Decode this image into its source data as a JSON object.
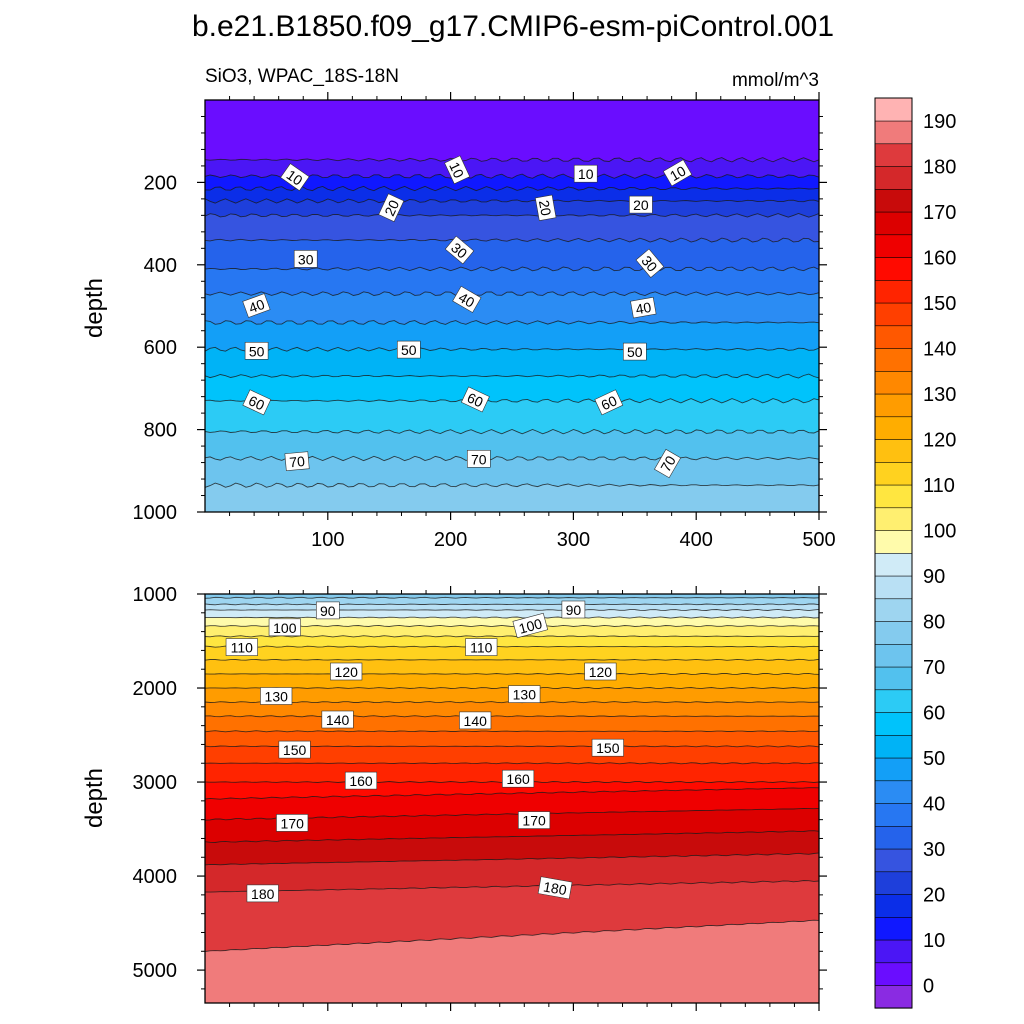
{
  "title": "b.e21.B1850.f09_g17.CMIP6-esm-piControl.001",
  "chart_data": [
    {
      "type": "contour",
      "panel": "upper",
      "subtitle_left": "SiO3, WPAC_18S-18N",
      "subtitle_right": "mmol/m^3",
      "ylabel": "depth",
      "xlabel": "",
      "xlim": [
        0,
        500
      ],
      "ylim": [
        1000,
        0
      ],
      "y_reversed": true,
      "x_ticks": [
        100,
        200,
        300,
        400,
        500
      ],
      "y_ticks": [
        200,
        400,
        600,
        800,
        1000
      ],
      "contour_depths": [
        {
          "value": 5,
          "depth": 145
        },
        {
          "value": 10,
          "depth": 185
        },
        {
          "value": 15,
          "depth": 215
        },
        {
          "value": 20,
          "depth": 245
        },
        {
          "value": 25,
          "depth": 280
        },
        {
          "value": 30,
          "depth": 340
        },
        {
          "value": 35,
          "depth": 410
        },
        {
          "value": 40,
          "depth": 470
        },
        {
          "value": 45,
          "depth": 540
        },
        {
          "value": 50,
          "depth": 605
        },
        {
          "value": 55,
          "depth": 670
        },
        {
          "value": 60,
          "depth": 730
        },
        {
          "value": 65,
          "depth": 805
        },
        {
          "value": 70,
          "depth": 870
        },
        {
          "value": 75,
          "depth": 935
        }
      ],
      "line_labels": [
        {
          "text": "10",
          "x": 73,
          "y": 188,
          "rot": 35
        },
        {
          "text": "10",
          "x": 205,
          "y": 170,
          "rot": 65
        },
        {
          "text": "10",
          "x": 310,
          "y": 180,
          "rot": 0
        },
        {
          "text": "10",
          "x": 385,
          "y": 178,
          "rot": -30
        },
        {
          "text": "20",
          "x": 152,
          "y": 262,
          "rot": -65
        },
        {
          "text": "20",
          "x": 277,
          "y": 262,
          "rot": 80
        },
        {
          "text": "20",
          "x": 355,
          "y": 255,
          "rot": 0
        },
        {
          "text": "30",
          "x": 82,
          "y": 387,
          "rot": 0
        },
        {
          "text": "30",
          "x": 207,
          "y": 365,
          "rot": 40
        },
        {
          "text": "30",
          "x": 362,
          "y": 397,
          "rot": 50
        },
        {
          "text": "40",
          "x": 42,
          "y": 500,
          "rot": -20
        },
        {
          "text": "40",
          "x": 213,
          "y": 485,
          "rot": 30
        },
        {
          "text": "40",
          "x": 357,
          "y": 505,
          "rot": -10
        },
        {
          "text": "50",
          "x": 42,
          "y": 610,
          "rot": 0
        },
        {
          "text": "50",
          "x": 166,
          "y": 607,
          "rot": 0
        },
        {
          "text": "50",
          "x": 350,
          "y": 612,
          "rot": 0
        },
        {
          "text": "60",
          "x": 42,
          "y": 735,
          "rot": 25
        },
        {
          "text": "60",
          "x": 220,
          "y": 728,
          "rot": 25
        },
        {
          "text": "60",
          "x": 329,
          "y": 735,
          "rot": -25
        },
        {
          "text": "70",
          "x": 75,
          "y": 878,
          "rot": -5
        },
        {
          "text": "70",
          "x": 223,
          "y": 872,
          "rot": 0
        },
        {
          "text": "70",
          "x": 377,
          "y": 883,
          "rot": -60
        }
      ]
    },
    {
      "type": "contour",
      "panel": "lower",
      "ylabel": "depth",
      "xlabel": "",
      "xlim": [
        0,
        500
      ],
      "ylim": [
        5350,
        1000
      ],
      "y_reversed": true,
      "x_ticks": [
        100,
        200,
        300,
        400,
        500
      ],
      "y_ticks": [
        1000,
        2000,
        3000,
        4000,
        5000
      ],
      "contour_depths": [
        {
          "value": 80,
          "depth": 1040
        },
        {
          "value": 85,
          "depth": 1110
        },
        {
          "value": 90,
          "depth": 1170
        },
        {
          "value": 95,
          "depth": 1250
        },
        {
          "value": 100,
          "depth": 1340
        },
        {
          "value": 105,
          "depth": 1450
        },
        {
          "value": 110,
          "depth": 1560
        },
        {
          "value": 115,
          "depth": 1700
        },
        {
          "value": 120,
          "depth": 1850
        },
        {
          "value": 125,
          "depth": 2000
        },
        {
          "value": 130,
          "depth": 2150
        },
        {
          "value": 135,
          "depth": 2300
        },
        {
          "value": 140,
          "depth": 2460
        },
        {
          "value": 145,
          "depth": 2620
        },
        {
          "value": 150,
          "depth": 2800
        },
        {
          "value": 155,
          "depth": 3000
        },
        {
          "value": 160,
          "depth": 3180
        },
        {
          "value": 165,
          "depth": 3400
        },
        {
          "value": 170,
          "depth": 3640
        },
        {
          "value": 175,
          "depth": 3880
        },
        {
          "value": 180,
          "depth": 4170
        },
        {
          "value": 185,
          "depth": 4800
        }
      ],
      "line_labels": [
        {
          "text": "90",
          "x": 100,
          "y": 1180,
          "rot": 0
        },
        {
          "text": "90",
          "x": 300,
          "y": 1170,
          "rot": 0
        },
        {
          "text": "100",
          "x": 65,
          "y": 1360,
          "rot": 0
        },
        {
          "text": "100",
          "x": 265,
          "y": 1340,
          "rot": -15
        },
        {
          "text": "110",
          "x": 30,
          "y": 1570,
          "rot": 0
        },
        {
          "text": "110",
          "x": 225,
          "y": 1570,
          "rot": 0
        },
        {
          "text": "120",
          "x": 115,
          "y": 1830,
          "rot": 0
        },
        {
          "text": "120",
          "x": 322,
          "y": 1830,
          "rot": 0
        },
        {
          "text": "130",
          "x": 58,
          "y": 2090,
          "rot": 0
        },
        {
          "text": "130",
          "x": 260,
          "y": 2070,
          "rot": 0
        },
        {
          "text": "140",
          "x": 108,
          "y": 2340,
          "rot": 0
        },
        {
          "text": "140",
          "x": 220,
          "y": 2350,
          "rot": 0
        },
        {
          "text": "150",
          "x": 73,
          "y": 2660,
          "rot": 0
        },
        {
          "text": "150",
          "x": 328,
          "y": 2640,
          "rot": 0
        },
        {
          "text": "160",
          "x": 127,
          "y": 2990,
          "rot": 0
        },
        {
          "text": "160",
          "x": 255,
          "y": 2970,
          "rot": 0
        },
        {
          "text": "170",
          "x": 71,
          "y": 3440,
          "rot": 0
        },
        {
          "text": "170",
          "x": 268,
          "y": 3410,
          "rot": 0
        },
        {
          "text": "180",
          "x": 47,
          "y": 4190,
          "rot": 0
        },
        {
          "text": "180",
          "x": 285,
          "y": 4130,
          "rot": 10
        }
      ]
    }
  ],
  "colorbar": {
    "tick_labels": [
      "0",
      "10",
      "20",
      "30",
      "40",
      "50",
      "60",
      "70",
      "80",
      "90",
      "100",
      "110",
      "120",
      "130",
      "140",
      "150",
      "160",
      "170",
      "180",
      "190"
    ],
    "colors": [
      "#8a2be2",
      "#6a0dff",
      "#4b16f5",
      "#1018ff",
      "#0b2ee8",
      "#1e3fdb",
      "#3654e0",
      "#2563eb",
      "#2777f2",
      "#2b8cf3",
      "#139ff7",
      "#00b3f6",
      "#00c3fb",
      "#2ccbf5",
      "#52c1ee",
      "#6dc4ee",
      "#84cbee",
      "#9ed5f0",
      "#b9e0f4",
      "#d0ebf7",
      "#fffbab",
      "#ffef70",
      "#ffe640",
      "#ffd21f",
      "#ffc010",
      "#ffad00",
      "#ff9c00",
      "#ff8800",
      "#ff7100",
      "#ff5800",
      "#ff3f00",
      "#ff2400",
      "#ff0a00",
      "#ef0000",
      "#dc0000",
      "#c80b0b",
      "#d4282a",
      "#de3a3d",
      "#f07b7b",
      "#ffb3b3"
    ]
  }
}
